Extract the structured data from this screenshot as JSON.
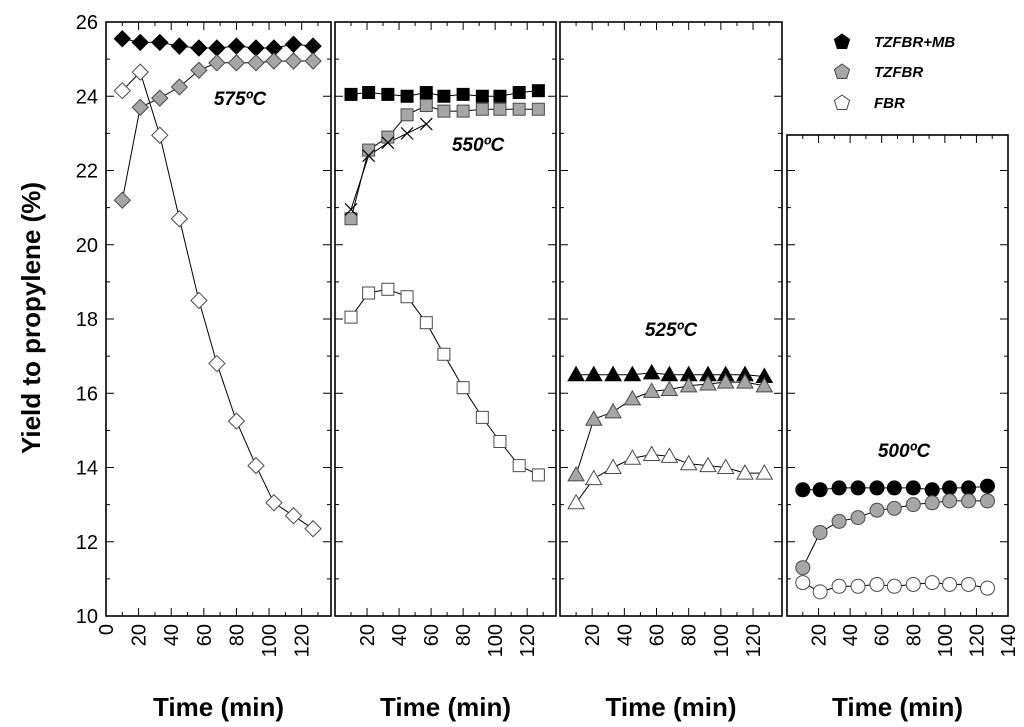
{
  "chart_data": {
    "type": "scatter",
    "ylabel": "Yield to propylene (%)",
    "xlabel": "Time (min)",
    "ylim": [
      10,
      26
    ],
    "yticks": [
      "10",
      "12",
      "14",
      "16",
      "18",
      "20",
      "22",
      "24",
      "26"
    ],
    "legend": [
      {
        "name": "TZFBR+MB",
        "fill": "#000000"
      },
      {
        "name": "TZFBR",
        "fill": "#a6a6a6"
      },
      {
        "name": "FBR",
        "fill": "#ffffff"
      }
    ],
    "panels": [
      {
        "temperature": "575ºC",
        "marker": "diamond",
        "xlim": [
          0,
          138
        ],
        "xticks": [
          "0",
          "20",
          "40",
          "60",
          "80",
          "100",
          "120"
        ],
        "series": [
          {
            "name": "TZFBR+MB",
            "x": [
              10,
              21,
              33,
              45,
              57,
              68,
              80,
              92,
              103,
              115,
              127
            ],
            "y": [
              25.55,
              25.45,
              25.45,
              25.35,
              25.3,
              25.3,
              25.35,
              25.3,
              25.3,
              25.4,
              25.35
            ]
          },
          {
            "name": "TZFBR",
            "x": [
              10,
              21,
              33,
              45,
              57,
              68,
              80,
              92,
              103,
              115,
              127
            ],
            "y": [
              21.2,
              23.7,
              23.95,
              24.25,
              24.7,
              24.9,
              24.9,
              24.9,
              24.95,
              24.95,
              24.95
            ]
          },
          {
            "name": "FBR",
            "x": [
              10,
              21,
              33,
              45,
              57,
              68,
              80,
              92,
              103,
              115,
              127
            ],
            "y": [
              24.15,
              24.65,
              22.95,
              20.7,
              18.5,
              16.8,
              15.25,
              14.05,
              13.05,
              12.7,
              12.35
            ]
          }
        ]
      },
      {
        "temperature": "550ºC",
        "marker": "square",
        "xlim": [
          0,
          138
        ],
        "xticks": [
          "20",
          "40",
          "60",
          "80",
          "100",
          "120"
        ],
        "series": [
          {
            "name": "TZFBR+MB",
            "x": [
              10,
              21,
              33,
              45,
              57,
              68,
              80,
              92,
              103,
              115,
              127
            ],
            "y": [
              24.05,
              24.1,
              24.05,
              24.0,
              24.1,
              24.0,
              24.05,
              24.0,
              24.0,
              24.1,
              24.15
            ]
          },
          {
            "name": "TZFBR",
            "x": [
              10,
              21,
              33,
              45,
              57,
              68,
              80,
              92,
              103,
              115,
              127
            ],
            "y": [
              20.7,
              22.55,
              22.9,
              23.5,
              23.75,
              23.6,
              23.6,
              23.65,
              23.65,
              23.65,
              23.65
            ]
          },
          {
            "name": "FBR",
            "x": [
              10,
              21,
              33,
              45,
              57,
              68,
              80,
              92,
              103,
              115,
              127
            ],
            "y": [
              18.05,
              18.7,
              18.8,
              18.6,
              17.9,
              17.05,
              16.15,
              15.35,
              14.7,
              14.05,
              13.8
            ]
          },
          {
            "name": "crosses",
            "x": [
              10,
              21,
              33,
              45,
              57
            ],
            "y": [
              20.95,
              22.4,
              22.75,
              23.0,
              23.25
            ]
          }
        ]
      },
      {
        "temperature": "525ºC",
        "marker": "triangle",
        "xlim": [
          0,
          138
        ],
        "xticks": [
          "20",
          "40",
          "60",
          "80",
          "100",
          "120"
        ],
        "series": [
          {
            "name": "TZFBR+MB",
            "x": [
              10,
              21,
              33,
              45,
              57,
              68,
              80,
              92,
              103,
              115,
              127
            ],
            "y": [
              16.5,
              16.5,
              16.5,
              16.5,
              16.55,
              16.5,
              16.5,
              16.5,
              16.5,
              16.5,
              16.45
            ]
          },
          {
            "name": "TZFBR",
            "x": [
              10,
              21,
              33,
              45,
              57,
              68,
              80,
              92,
              103,
              115,
              127
            ],
            "y": [
              13.8,
              15.3,
              15.5,
              15.85,
              16.05,
              16.1,
              16.2,
              16.25,
              16.3,
              16.3,
              16.2
            ]
          },
          {
            "name": "FBR",
            "x": [
              10,
              21,
              33,
              45,
              57,
              68,
              80,
              92,
              103,
              115,
              127
            ],
            "y": [
              13.05,
              13.7,
              14.0,
              14.25,
              14.35,
              14.3,
              14.1,
              14.05,
              14.0,
              13.85,
              13.85
            ]
          }
        ]
      },
      {
        "temperature": "500ºC",
        "marker": "circle",
        "xlim": [
          0,
          140
        ],
        "xticks": [
          "20",
          "40",
          "60",
          "80",
          "100",
          "120",
          "140"
        ],
        "series": [
          {
            "name": "TZFBR+MB",
            "x": [
              10,
              21,
              33,
              45,
              57,
              68,
              80,
              92,
              103,
              115,
              127
            ],
            "y": [
              13.4,
              13.4,
              13.45,
              13.45,
              13.45,
              13.45,
              13.45,
              13.4,
              13.45,
              13.45,
              13.5
            ]
          },
          {
            "name": "TZFBR",
            "x": [
              10,
              21,
              33,
              45,
              57,
              68,
              80,
              92,
              103,
              115,
              127
            ],
            "y": [
              11.3,
              12.25,
              12.55,
              12.65,
              12.85,
              12.9,
              13.0,
              13.05,
              13.1,
              13.1,
              13.1
            ]
          },
          {
            "name": "FBR",
            "x": [
              10,
              21,
              33,
              45,
              57,
              68,
              80,
              92,
              103,
              115,
              127
            ],
            "y": [
              10.9,
              10.65,
              10.8,
              10.8,
              10.85,
              10.8,
              10.85,
              10.9,
              10.85,
              10.85,
              10.75
            ]
          }
        ]
      }
    ]
  }
}
